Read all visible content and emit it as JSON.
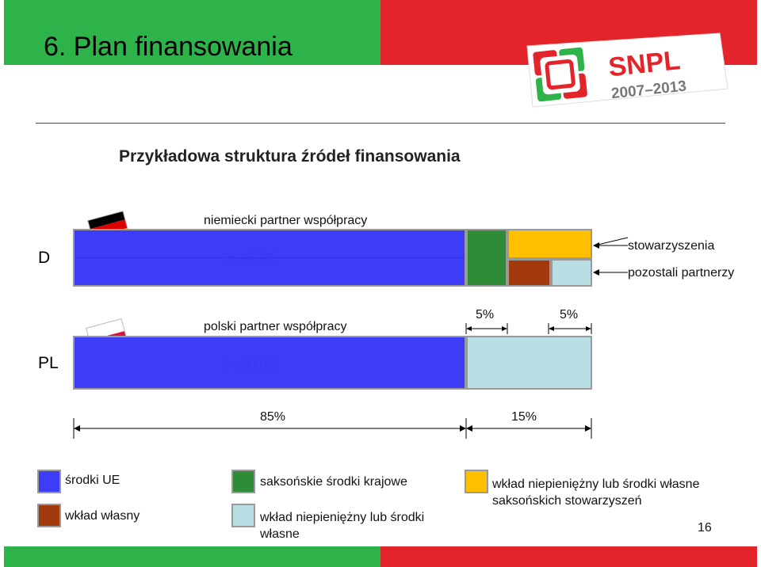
{
  "header": {
    "title": "6. Plan finansowania"
  },
  "logo": {
    "text": "SNPL",
    "years": "2007–2013"
  },
  "subtitle": "Przykładowa struktura źródeł finansowania",
  "row_d": {
    "label": "D",
    "partner": "niemiecki partner współpracy",
    "eu_label": "środki UE"
  },
  "row_pl": {
    "label": "PL",
    "partner": "polski partner współpracy",
    "eu_label": "środki UE",
    "pct_left": "5%",
    "pct_right": "5%"
  },
  "annotations": {
    "associations": "stowarzyszenia",
    "other_partners": "pozostali partnerzy"
  },
  "dimensions": {
    "left_pct": "85%",
    "right_pct": "15%"
  },
  "legend": [
    {
      "label": "środki UE",
      "color": "#3d3df7"
    },
    {
      "label": "wkład własny",
      "color": "#a33a0e"
    },
    {
      "label": "saksońskie środki krajowe",
      "color": "#2e8b37"
    },
    {
      "label": "wkład niepieniężny lub środki własne",
      "color": "#b8dfe3"
    },
    {
      "label": "wkład niepieniężny lub środki własne saksońskich stowarzyszeń",
      "color": "#ffc000"
    }
  ],
  "page_number": "16",
  "colors": {
    "eu": "#3d3df7",
    "green": "#2e8b37",
    "yellow": "#ffc000",
    "brown": "#a33a0e",
    "lightblue": "#b8dfe3",
    "header_green": "#2eb24a",
    "header_red": "#e4242b"
  }
}
